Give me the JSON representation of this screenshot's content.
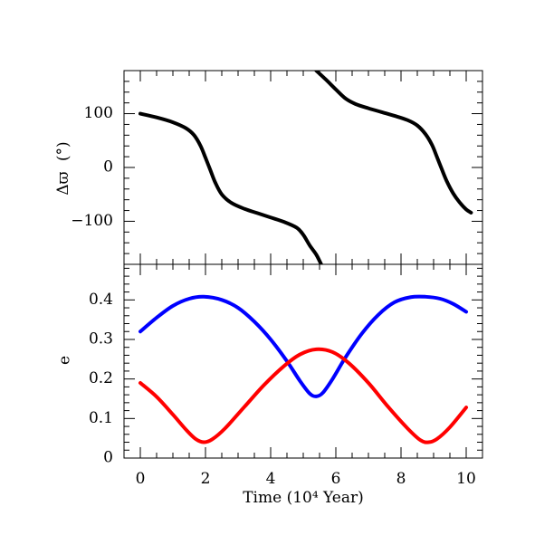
{
  "chart_data": [
    {
      "type": "line",
      "panel": "top",
      "xlabel": "",
      "ylabel_symbol": "Δϖ",
      "ylabel_unit": "(°)",
      "xlim": [
        -0.5,
        10.5
      ],
      "ylim": [
        -180,
        180
      ],
      "x_ticks": [
        0,
        2,
        4,
        6,
        8,
        10
      ],
      "y_ticks": [
        -100,
        0,
        100
      ],
      "y_tick_labels": [
        "−100",
        "0",
        "100"
      ],
      "grid": false,
      "series": [
        {
          "color": "#000000",
          "points": [
            [
              0,
              100
            ],
            [
              0.5,
              93
            ],
            [
              1.0,
              84
            ],
            [
              1.4,
              73
            ],
            [
              1.65,
              60
            ],
            [
              1.85,
              40
            ],
            [
              2.0,
              18
            ],
            [
              2.15,
              -5
            ],
            [
              2.3,
              -28
            ],
            [
              2.5,
              -50
            ],
            [
              2.8,
              -66
            ],
            [
              3.2,
              -77
            ],
            [
              3.6,
              -85
            ],
            [
              4.0,
              -93
            ],
            [
              4.4,
              -101
            ],
            [
              4.8,
              -112
            ],
            [
              5.0,
              -125
            ],
            [
              5.2,
              -145
            ],
            [
              5.4,
              -162
            ],
            [
              5.55,
              -180
            ]
          ]
        },
        {
          "color": "#000000",
          "points": [
            [
              5.4,
              180
            ],
            [
              5.7,
              163
            ],
            [
              6.0,
              145
            ],
            [
              6.3,
              128
            ],
            [
              6.6,
              118
            ],
            [
              7.0,
              110
            ],
            [
              7.4,
              103
            ],
            [
              7.8,
              96
            ],
            [
              8.2,
              88
            ],
            [
              8.5,
              78
            ],
            [
              8.75,
              62
            ],
            [
              8.95,
              42
            ],
            [
              9.1,
              20
            ],
            [
              9.25,
              -3
            ],
            [
              9.4,
              -25
            ],
            [
              9.6,
              -48
            ],
            [
              9.8,
              -65
            ],
            [
              10.0,
              -78
            ],
            [
              10.15,
              -84
            ]
          ]
        }
      ]
    },
    {
      "type": "line",
      "panel": "bottom",
      "xlabel": "Time (10⁴ Year)",
      "ylabel": "e",
      "xlim": [
        -0.5,
        10.5
      ],
      "ylim": [
        0,
        0.49
      ],
      "x_ticks": [
        0,
        2,
        4,
        6,
        8,
        10
      ],
      "x_tick_labels": [
        "0",
        "2",
        "4",
        "6",
        "8",
        "10"
      ],
      "y_ticks": [
        0,
        0.1,
        0.2,
        0.3,
        0.4
      ],
      "y_tick_labels": [
        "0",
        "0.1",
        "0.2",
        "0.3",
        "0.4"
      ],
      "grid": false,
      "series": [
        {
          "color": "#0000ff",
          "points": [
            [
              0,
              0.32
            ],
            [
              0.5,
              0.355
            ],
            [
              1.0,
              0.385
            ],
            [
              1.5,
              0.403
            ],
            [
              1.95,
              0.408
            ],
            [
              2.5,
              0.4
            ],
            [
              3.0,
              0.38
            ],
            [
              3.5,
              0.345
            ],
            [
              4.0,
              0.3
            ],
            [
              4.5,
              0.245
            ],
            [
              4.9,
              0.195
            ],
            [
              5.2,
              0.163
            ],
            [
              5.4,
              0.156
            ],
            [
              5.6,
              0.165
            ],
            [
              5.9,
              0.2
            ],
            [
              6.3,
              0.255
            ],
            [
              6.8,
              0.315
            ],
            [
              7.3,
              0.362
            ],
            [
              7.8,
              0.394
            ],
            [
              8.3,
              0.407
            ],
            [
              8.75,
              0.408
            ],
            [
              9.2,
              0.403
            ],
            [
              9.6,
              0.39
            ],
            [
              10.0,
              0.37
            ]
          ]
        },
        {
          "color": "#ff0000",
          "points": [
            [
              0,
              0.19
            ],
            [
              0.5,
              0.155
            ],
            [
              1.0,
              0.11
            ],
            [
              1.4,
              0.072
            ],
            [
              1.7,
              0.048
            ],
            [
              1.95,
              0.04
            ],
            [
              2.2,
              0.047
            ],
            [
              2.6,
              0.075
            ],
            [
              3.2,
              0.13
            ],
            [
              3.8,
              0.185
            ],
            [
              4.4,
              0.232
            ],
            [
              4.9,
              0.262
            ],
            [
              5.4,
              0.275
            ],
            [
              5.9,
              0.268
            ],
            [
              6.4,
              0.24
            ],
            [
              7.0,
              0.19
            ],
            [
              7.6,
              0.13
            ],
            [
              8.2,
              0.075
            ],
            [
              8.6,
              0.045
            ],
            [
              8.85,
              0.04
            ],
            [
              9.1,
              0.048
            ],
            [
              9.5,
              0.078
            ],
            [
              10.0,
              0.128
            ]
          ]
        }
      ]
    }
  ]
}
